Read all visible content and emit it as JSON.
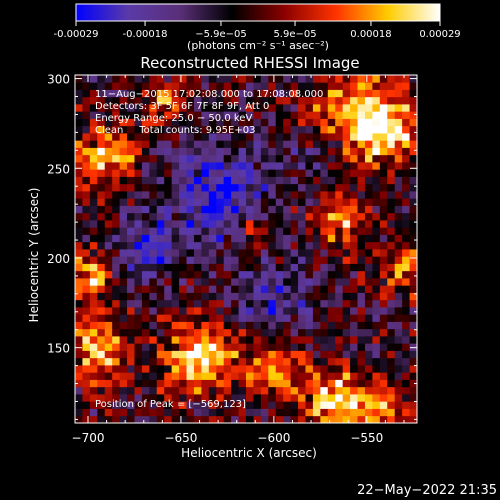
{
  "colorbar": {
    "tick_labels": [
      "-0.00029",
      "-0.00018",
      "−5.9e−05",
      "5.9e−05",
      "0.00018",
      "0.00029"
    ],
    "tick_values": [
      -0.00029,
      -0.00018,
      -5.9e-05,
      5.9e-05,
      0.00018,
      0.00029
    ],
    "range": [
      -0.00029,
      0.00029
    ],
    "units_label": "(photons cm⁻² s⁻¹ asec⁻²)"
  },
  "chart_data": {
    "type": "heatmap",
    "title": "Reconstructed RHESSI Image",
    "xlabel": "Heliocentric X (arcsec)",
    "ylabel": "Heliocentric Y (arcsec)",
    "xlim": [
      -707,
      -523
    ],
    "ylim": [
      108,
      302
    ],
    "x_ticks": [
      -700,
      -650,
      -600,
      -550
    ],
    "y_ticks": [
      150,
      200,
      250,
      300
    ],
    "x_tick_labels": [
      "−700",
      "−650",
      "−600",
      "−550"
    ],
    "y_tick_labels": [
      "150",
      "200",
      "250",
      "300"
    ],
    "grid": false,
    "colormap": [
      "#0000ff",
      "#5a3aa8",
      "#5a2f78",
      "#000000",
      "#8a0000",
      "#ff3300",
      "#ffcc00",
      "#ffffff"
    ],
    "annotations": [
      "11−Aug−2015 17:02:08.000 to 17:08:08.000",
      "Detectors: 3F 5F 6F 7F 8F 9F, Att 0",
      "Energy Range: 25.0 − 50.0 keV",
      "Clean     Total counts: 9.95E+03"
    ],
    "peak_label": "Position of Peak = [−569,123]",
    "peak": [
      -569,
      123
    ],
    "bright_regions": [
      {
        "x": -695,
        "y": 150,
        "level": 0.85,
        "r": 18
      },
      {
        "x": -640,
        "y": 145,
        "level": 1.0,
        "r": 20
      },
      {
        "x": -600,
        "y": 140,
        "level": 0.8,
        "r": 16
      },
      {
        "x": -569,
        "y": 123,
        "level": 1.0,
        "r": 16
      },
      {
        "x": -545,
        "y": 115,
        "level": 0.85,
        "r": 14
      },
      {
        "x": -555,
        "y": 280,
        "level": 1.0,
        "r": 24
      },
      {
        "x": -540,
        "y": 270,
        "level": 0.85,
        "r": 16
      },
      {
        "x": -565,
        "y": 220,
        "level": 0.75,
        "r": 14
      },
      {
        "x": -690,
        "y": 255,
        "level": 0.85,
        "r": 18
      },
      {
        "x": -700,
        "y": 190,
        "level": 0.8,
        "r": 14
      },
      {
        "x": -530,
        "y": 195,
        "level": 0.7,
        "r": 14
      },
      {
        "x": -660,
        "y": 285,
        "level": 0.65,
        "r": 12
      },
      {
        "x": -610,
        "y": 215,
        "level": 0.5,
        "r": 10
      }
    ],
    "dim_regions": [
      {
        "x": -630,
        "y": 235,
        "level": -0.8,
        "r": 28
      },
      {
        "x": -600,
        "y": 175,
        "level": -0.55,
        "r": 20
      },
      {
        "x": -670,
        "y": 205,
        "level": -0.6,
        "r": 18
      },
      {
        "x": -575,
        "y": 260,
        "level": -0.45,
        "r": 15
      }
    ]
  },
  "footer": {
    "timestamp": "22−May−2022 21:35"
  }
}
